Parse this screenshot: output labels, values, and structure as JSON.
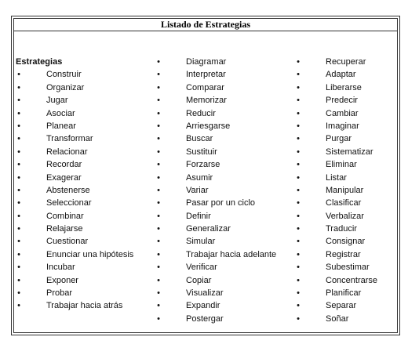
{
  "document": {
    "title": "Listado de Estrategias",
    "heading": "Estrategias",
    "bullet": "•"
  },
  "columns": {
    "col1": [
      "Construir",
      "Organizar",
      "Jugar",
      "Asociar",
      "Planear",
      "Transformar",
      "Relacionar",
      "Recordar",
      "Exagerar",
      "Abstenerse",
      "Seleccionar",
      "Combinar",
      "Relajarse",
      "Cuestionar",
      "Enunciar una hipótesis",
      "Incubar",
      "Exponer",
      "Probar",
      "Trabajar hacia atrás"
    ],
    "col2": [
      "Diagramar",
      "Interpretar",
      "Comparar",
      "Memorizar",
      "Reducir",
      "Arriesgarse",
      "Buscar",
      "Sustituir",
      "Forzarse",
      "Asumir",
      "Variar",
      "Pasar por un ciclo",
      "Definir",
      "Generalizar",
      "Simular",
      "Trabajar hacia adelante",
      "Verificar",
      "Copiar",
      "Visualizar",
      "Expandir",
      "Postergar"
    ],
    "col3": [
      "Recuperar",
      "Adaptar",
      "Liberarse",
      "Predecir",
      "Cambiar",
      "Imaginar",
      "Purgar",
      "Sistematizar",
      "Eliminar",
      "Listar",
      "Manipular",
      "Clasificar",
      "Verbalizar",
      "Traducir",
      "Consignar",
      "Registrar",
      "Subestimar",
      "Concentrarse",
      "Planificar",
      "Separar",
      "Soñar"
    ]
  }
}
